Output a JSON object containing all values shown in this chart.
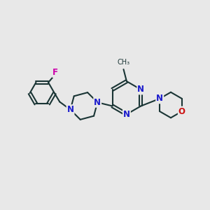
{
  "bg_color": "#e8e8e8",
  "bond_color": "#1a3535",
  "N_color": "#1a1acc",
  "O_color": "#cc1111",
  "F_color": "#cc00aa",
  "line_width": 1.5,
  "font_size": 8.5,
  "xlim": [
    0,
    10
  ],
  "ylim": [
    0,
    10
  ]
}
